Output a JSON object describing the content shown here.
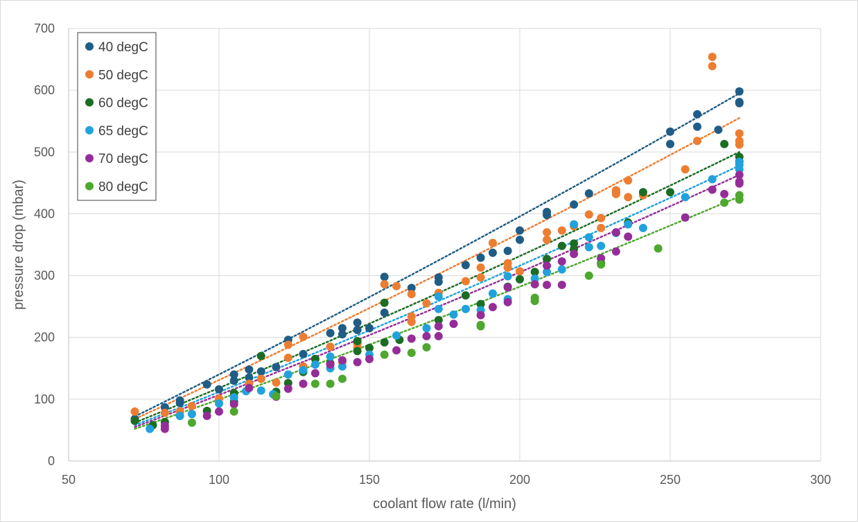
{
  "chart_data": {
    "type": "scatter",
    "title": "",
    "xlabel": "coolant flow rate (l/min)",
    "ylabel": "pressure drop (mbar)",
    "xlim": [
      50,
      300
    ],
    "ylim": [
      0,
      700
    ],
    "xticks": [
      50,
      100,
      150,
      200,
      250,
      300
    ],
    "yticks": [
      0,
      100,
      200,
      300,
      400,
      500,
      600,
      700
    ],
    "grid": true,
    "legend_position": "top-left",
    "trendline": "polynomial, dotted",
    "series": [
      {
        "name": "40 degC",
        "color": "#1f5d86",
        "trend": [
          [
            72,
            72
          ],
          [
            273,
            595
          ]
        ],
        "points": [
          [
            72,
            68
          ],
          [
            82,
            87
          ],
          [
            87,
            98
          ],
          [
            87,
            94
          ],
          [
            96,
            124
          ],
          [
            100,
            116
          ],
          [
            105,
            140
          ],
          [
            105,
            130
          ],
          [
            110,
            148
          ],
          [
            110,
            135
          ],
          [
            114,
            145
          ],
          [
            119,
            152
          ],
          [
            123,
            196
          ],
          [
            128,
            173
          ],
          [
            132,
            165
          ],
          [
            137,
            207
          ],
          [
            141,
            215
          ],
          [
            141,
            205
          ],
          [
            146,
            224
          ],
          [
            146,
            212
          ],
          [
            150,
            215
          ],
          [
            155,
            298
          ],
          [
            155,
            240
          ],
          [
            164,
            280
          ],
          [
            173,
            297
          ],
          [
            173,
            290
          ],
          [
            182,
            317
          ],
          [
            187,
            329
          ],
          [
            191,
            337
          ],
          [
            196,
            340
          ],
          [
            200,
            373
          ],
          [
            200,
            358
          ],
          [
            209,
            403
          ],
          [
            209,
            398
          ],
          [
            218,
            415
          ],
          [
            223,
            433
          ],
          [
            232,
            435
          ],
          [
            250,
            533
          ],
          [
            250,
            513
          ],
          [
            259,
            561
          ],
          [
            259,
            541
          ],
          [
            266,
            536
          ],
          [
            273,
            598
          ],
          [
            273,
            581
          ],
          [
            273,
            579
          ]
        ]
      },
      {
        "name": "50 degC",
        "color": "#ed7d31",
        "trend": [
          [
            72,
            68
          ],
          [
            273,
            555
          ]
        ],
        "points": [
          [
            72,
            80
          ],
          [
            82,
            78
          ],
          [
            87,
            80
          ],
          [
            91,
            89
          ],
          [
            100,
            101
          ],
          [
            105,
            105
          ],
          [
            110,
            125
          ],
          [
            114,
            133
          ],
          [
            119,
            127
          ],
          [
            123,
            188
          ],
          [
            123,
            167
          ],
          [
            128,
            201
          ],
          [
            128,
            153
          ],
          [
            132,
            165
          ],
          [
            137,
            185
          ],
          [
            141,
            160
          ],
          [
            146,
            190
          ],
          [
            146,
            183
          ],
          [
            155,
            286
          ],
          [
            159,
            283
          ],
          [
            164,
            270
          ],
          [
            164,
            234
          ],
          [
            164,
            225
          ],
          [
            169,
            255
          ],
          [
            173,
            272
          ],
          [
            182,
            291
          ],
          [
            187,
            313
          ],
          [
            187,
            297
          ],
          [
            191,
            353
          ],
          [
            196,
            320
          ],
          [
            196,
            313
          ],
          [
            200,
            307
          ],
          [
            209,
            370
          ],
          [
            209,
            358
          ],
          [
            214,
            373
          ],
          [
            218,
            380
          ],
          [
            223,
            399
          ],
          [
            227,
            393
          ],
          [
            227,
            377
          ],
          [
            232,
            438
          ],
          [
            232,
            432
          ],
          [
            236,
            454
          ],
          [
            236,
            427
          ],
          [
            241,
            430
          ],
          [
            255,
            472
          ],
          [
            259,
            518
          ],
          [
            264,
            654
          ],
          [
            264,
            639
          ],
          [
            273,
            530
          ],
          [
            273,
            518
          ],
          [
            273,
            512
          ]
        ]
      },
      {
        "name": "60 degC",
        "color": "#1b6d24",
        "trend": [
          [
            72,
            62
          ],
          [
            273,
            500
          ]
        ],
        "points": [
          [
            72,
            65
          ],
          [
            78,
            58
          ],
          [
            82,
            63
          ],
          [
            87,
            73
          ],
          [
            96,
            81
          ],
          [
            105,
            110
          ],
          [
            105,
            96
          ],
          [
            114,
            170
          ],
          [
            119,
            112
          ],
          [
            123,
            126
          ],
          [
            128,
            144
          ],
          [
            132,
            165
          ],
          [
            137,
            158
          ],
          [
            146,
            194
          ],
          [
            146,
            178
          ],
          [
            150,
            183
          ],
          [
            155,
            256
          ],
          [
            155,
            192
          ],
          [
            160,
            196
          ],
          [
            173,
            228
          ],
          [
            182,
            268
          ],
          [
            187,
            254
          ],
          [
            196,
            282
          ],
          [
            200,
            294
          ],
          [
            205,
            306
          ],
          [
            209,
            327
          ],
          [
            214,
            348
          ],
          [
            218,
            352
          ],
          [
            218,
            343
          ],
          [
            227,
            320
          ],
          [
            236,
            386
          ],
          [
            241,
            435
          ],
          [
            250,
            435
          ],
          [
            268,
            513
          ],
          [
            273,
            492
          ],
          [
            273,
            485
          ]
        ]
      },
      {
        "name": "65 degC",
        "color": "#21a2dc",
        "trend": [
          [
            72,
            58
          ],
          [
            273,
            478
          ]
        ],
        "points": [
          [
            77,
            52
          ],
          [
            87,
            73
          ],
          [
            91,
            76
          ],
          [
            100,
            93
          ],
          [
            105,
            103
          ],
          [
            109,
            113
          ],
          [
            114,
            114
          ],
          [
            118,
            108
          ],
          [
            123,
            140
          ],
          [
            128,
            147
          ],
          [
            132,
            156
          ],
          [
            137,
            169
          ],
          [
            137,
            150
          ],
          [
            141,
            153
          ],
          [
            150,
            172
          ],
          [
            159,
            203
          ],
          [
            169,
            215
          ],
          [
            173,
            266
          ],
          [
            173,
            246
          ],
          [
            178,
            237
          ],
          [
            182,
            246
          ],
          [
            187,
            244
          ],
          [
            191,
            271
          ],
          [
            196,
            299
          ],
          [
            196,
            262
          ],
          [
            205,
            295
          ],
          [
            209,
            306
          ],
          [
            214,
            310
          ],
          [
            218,
            383
          ],
          [
            223,
            362
          ],
          [
            223,
            346
          ],
          [
            227,
            348
          ],
          [
            232,
            369
          ],
          [
            236,
            383
          ],
          [
            241,
            377
          ],
          [
            255,
            427
          ],
          [
            264,
            456
          ],
          [
            273,
            484
          ],
          [
            273,
            479
          ],
          [
            273,
            472
          ]
        ]
      },
      {
        "name": "70 degC",
        "color": "#952d98",
        "trend": [
          [
            72,
            55
          ],
          [
            273,
            463
          ]
        ],
        "points": [
          [
            82,
            52
          ],
          [
            82,
            57
          ],
          [
            96,
            73
          ],
          [
            100,
            80
          ],
          [
            105,
            92
          ],
          [
            110,
            118
          ],
          [
            119,
            104
          ],
          [
            123,
            117
          ],
          [
            128,
            125
          ],
          [
            132,
            142
          ],
          [
            137,
            156
          ],
          [
            141,
            163
          ],
          [
            146,
            160
          ],
          [
            150,
            165
          ],
          [
            159,
            179
          ],
          [
            164,
            198
          ],
          [
            169,
            202
          ],
          [
            173,
            202
          ],
          [
            173,
            218
          ],
          [
            178,
            222
          ],
          [
            187,
            236
          ],
          [
            191,
            249
          ],
          [
            196,
            281
          ],
          [
            196,
            257
          ],
          [
            205,
            286
          ],
          [
            209,
            316
          ],
          [
            209,
            285
          ],
          [
            214,
            323
          ],
          [
            214,
            285
          ],
          [
            218,
            335
          ],
          [
            227,
            328
          ],
          [
            232,
            370
          ],
          [
            232,
            339
          ],
          [
            236,
            363
          ],
          [
            255,
            394
          ],
          [
            264,
            439
          ],
          [
            268,
            432
          ],
          [
            273,
            463
          ],
          [
            273,
            452
          ],
          [
            273,
            449
          ]
        ]
      },
      {
        "name": "80 degC",
        "color": "#4ea72e",
        "trend": [
          [
            72,
            52
          ],
          [
            273,
            428
          ]
        ],
        "points": [
          [
            91,
            62
          ],
          [
            105,
            80
          ],
          [
            119,
            105
          ],
          [
            132,
            125
          ],
          [
            137,
            125
          ],
          [
            141,
            133
          ],
          [
            155,
            172
          ],
          [
            164,
            175
          ],
          [
            169,
            184
          ],
          [
            187,
            218
          ],
          [
            187,
            220
          ],
          [
            205,
            259
          ],
          [
            205,
            264
          ],
          [
            223,
            300
          ],
          [
            227,
            318
          ],
          [
            246,
            344
          ],
          [
            268,
            418
          ],
          [
            273,
            430
          ],
          [
            273,
            423
          ]
        ]
      }
    ]
  }
}
